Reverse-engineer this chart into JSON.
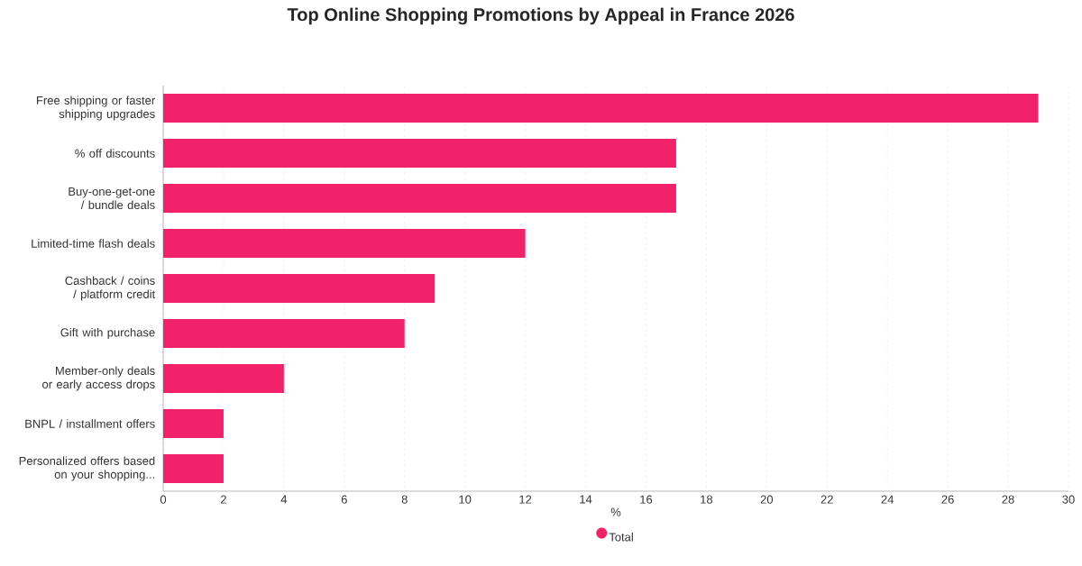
{
  "chart_data": {
    "type": "bar",
    "orientation": "horizontal",
    "title": "Top Online Shopping Promotions by Appeal in France 2026",
    "xlabel": "%",
    "categories": [
      "Free shipping or faster shipping upgrades",
      "% off discounts",
      "Buy-one-get-one / bundle deals",
      "Limited-time flash deals",
      "Cashback / coins / platform credit",
      "Gift with purchase",
      "Member-only deals or early access drops",
      "BNPL / installment offers",
      "Personalized offers based on your shopping..."
    ],
    "series": [
      {
        "name": "Total",
        "color": "#f2226a",
        "values": [
          29,
          17,
          17,
          12,
          9,
          8,
          4,
          2,
          2
        ]
      }
    ],
    "xlim": [
      0,
      30
    ],
    "xticks": [
      0,
      2,
      4,
      6,
      8,
      10,
      12,
      14,
      16,
      18,
      20,
      22,
      24,
      26,
      28,
      30
    ],
    "grid": "x",
    "legend": "bottom"
  }
}
